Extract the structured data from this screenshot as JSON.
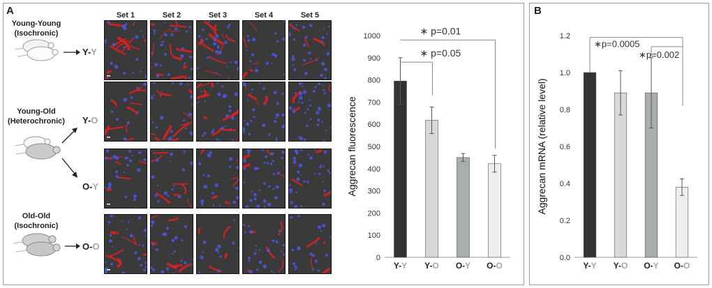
{
  "panel_a": {
    "label": "A",
    "groups": {
      "young_young": {
        "line1": "Young-Young",
        "line2": "(Isochronic)"
      },
      "young_old": {
        "line1": "Young-Old",
        "line2": "(Heterochronic)"
      },
      "old_old": {
        "line1": "Old-Old",
        "line2": "(Isochronic)"
      }
    },
    "codes": {
      "yy": {
        "first": "Y-",
        "second": "Y"
      },
      "yo": {
        "first": "Y-",
        "second": "O"
      },
      "oy": {
        "first": "O-",
        "second": "Y"
      },
      "oo": {
        "first": "O-",
        "second": "O"
      }
    },
    "sets": [
      "Set 1",
      "Set 2",
      "Set 3",
      "Set 4",
      "Set 5"
    ],
    "stain": {
      "red": "#e02020",
      "blue": "#4a55d8",
      "background": "#3a3a3a"
    }
  },
  "panel_b": {
    "label": "B"
  },
  "chart_data": [
    {
      "type": "bar",
      "title": "",
      "categories": [
        "Y-Y",
        "Y-O",
        "O-Y",
        "O-O"
      ],
      "category_parts": [
        [
          "Y-",
          "Y"
        ],
        [
          "Y-",
          "O"
        ],
        [
          "O-",
          "Y"
        ],
        [
          "O-",
          "O"
        ]
      ],
      "values": [
        795,
        618,
        450,
        422
      ],
      "errors": [
        105,
        60,
        18,
        38
      ],
      "colors": [
        "#333333",
        "#d6d9d8",
        "#a9adac",
        "#eeeeee"
      ],
      "ylabel": "Aggrecan fluorescence",
      "xlabel": "",
      "ylim": [
        0,
        1000
      ],
      "yticks": [
        0,
        100,
        200,
        300,
        400,
        500,
        600,
        700,
        800,
        900,
        1000
      ],
      "grid": false,
      "annotations": [
        {
          "from": 0,
          "to": 3,
          "star": "∗",
          "text": "p=0.01"
        },
        {
          "from": 0,
          "to": 1,
          "star": "∗",
          "text": "p=0.05"
        }
      ]
    },
    {
      "type": "bar",
      "title": "",
      "categories": [
        "Y-Y",
        "Y-O",
        "O-Y",
        "O-O"
      ],
      "category_parts": [
        [
          "Y-",
          "Y"
        ],
        [
          "Y-",
          "O"
        ],
        [
          "O-",
          "Y"
        ],
        [
          "O-",
          "O"
        ]
      ],
      "values": [
        1.0,
        0.89,
        0.89,
        0.38
      ],
      "errors": [
        0,
        0.12,
        0.19,
        0.045
      ],
      "colors": [
        "#333333",
        "#d6d9d8",
        "#a9adac",
        "#eeeeee"
      ],
      "ylabel": "Aggrecan mRNA (relative level)",
      "xlabel": "",
      "ylim": [
        0,
        1.2
      ],
      "yticks": [
        "0.0",
        "0.2",
        "0.4",
        "0.6",
        "0.8",
        "1.0",
        "1.2"
      ],
      "grid": false,
      "annotations": [
        {
          "from": 0,
          "to": 3,
          "star": "∗",
          "text": "p=0.0005"
        },
        {
          "from": 2,
          "to": 3,
          "star": "∗",
          "text": "p=0.002"
        }
      ]
    }
  ]
}
